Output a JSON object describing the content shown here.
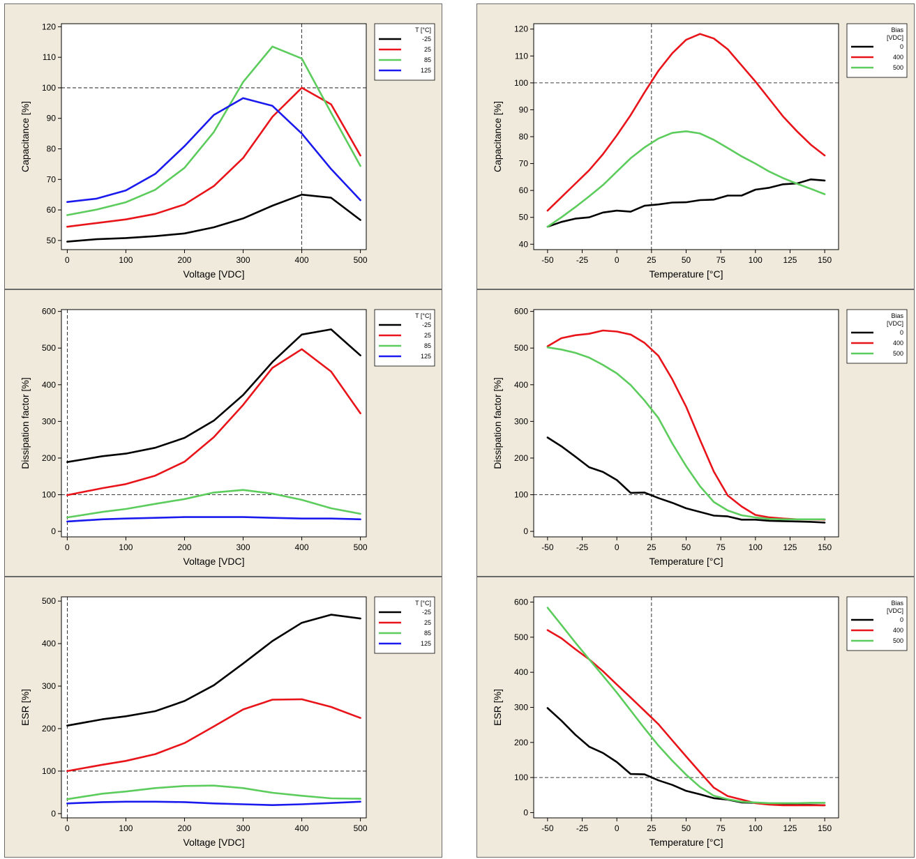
{
  "chart_data": [
    {
      "type": "line",
      "xlabel": "Voltage [VDC]",
      "ylabel": "Capacitance [%]",
      "xlim": [
        -10,
        510
      ],
      "ylim": [
        47,
        121
      ],
      "xticks": [
        0,
        100,
        200,
        300,
        400,
        500
      ],
      "yticks": [
        50,
        60,
        70,
        80,
        90,
        100,
        110,
        120
      ],
      "refx": 400,
      "refy": 100,
      "legend": {
        "title": [
          "T [°C]"
        ]
      },
      "series": [
        {
          "name": "-25",
          "color": "#000000",
          "x": [
            0,
            50,
            100,
            150,
            200,
            250,
            300,
            350,
            400,
            450,
            500
          ],
          "y": [
            49.6,
            50.4,
            50.8,
            51.4,
            52.3,
            54.3,
            57.2,
            61.4,
            65.0,
            64.0,
            56.7
          ]
        },
        {
          "name": "25",
          "color": "#e8141a",
          "x": [
            0,
            50,
            100,
            150,
            200,
            250,
            300,
            350,
            400,
            450,
            500
          ],
          "y": [
            54.5,
            55.7,
            56.9,
            58.7,
            61.8,
            67.8,
            77.0,
            90.5,
            100.0,
            94.6,
            77.8
          ]
        },
        {
          "name": "85",
          "color": "#5ccc5c",
          "x": [
            0,
            50,
            100,
            150,
            200,
            250,
            300,
            350,
            400,
            450,
            500
          ],
          "y": [
            58.3,
            60.1,
            62.5,
            66.6,
            73.8,
            85.5,
            101.9,
            113.5,
            109.6,
            91.8,
            74.4
          ]
        },
        {
          "name": "125",
          "color": "#1a1aee",
          "x": [
            0,
            50,
            100,
            150,
            200,
            250,
            300,
            350,
            400,
            450,
            500
          ],
          "y": [
            62.6,
            63.7,
            66.4,
            71.8,
            80.9,
            91.1,
            96.6,
            94.1,
            85.0,
            73.4,
            63.2
          ]
        }
      ]
    },
    {
      "type": "line",
      "xlabel": "Temperature [°C]",
      "ylabel": "Capacitance [%]",
      "xlim": [
        -60,
        160
      ],
      "ylim": [
        38,
        122
      ],
      "xticks": [
        -50,
        -25,
        0,
        25,
        50,
        75,
        100,
        125,
        150
      ],
      "yticks": [
        40,
        50,
        60,
        70,
        80,
        90,
        100,
        110,
        120
      ],
      "refx": 25,
      "refy": 100,
      "legend": {
        "title": [
          "Bias",
          "[VDC]"
        ]
      },
      "series": [
        {
          "name": "0",
          "color": "#000000",
          "x": [
            -50,
            -40,
            -30,
            -20,
            -10,
            0,
            10,
            20,
            30,
            40,
            50,
            60,
            70,
            80,
            90,
            100,
            110,
            120,
            130,
            140,
            150
          ],
          "y": [
            46.5,
            48.3,
            49.5,
            50.0,
            51.8,
            52.5,
            52.1,
            54.3,
            54.8,
            55.5,
            55.6,
            56.4,
            56.6,
            58.1,
            58.1,
            60.3,
            61.0,
            62.3,
            62.6,
            64.1,
            63.7
          ]
        },
        {
          "name": "400",
          "color": "#e8141a",
          "x": [
            -50,
            -40,
            -30,
            -20,
            -10,
            0,
            10,
            20,
            30,
            40,
            50,
            60,
            70,
            80,
            90,
            100,
            110,
            120,
            130,
            140,
            150
          ],
          "y": [
            52.5,
            57.5,
            62.5,
            67.5,
            73.5,
            80.5,
            88.0,
            96.5,
            104.5,
            111.0,
            116.0,
            118.2,
            116.5,
            112.5,
            106.5,
            100.5,
            94.0,
            87.5,
            82.0,
            77.0,
            73.0
          ]
        },
        {
          "name": "500",
          "color": "#5ccc5c",
          "x": [
            -50,
            -40,
            -30,
            -20,
            -10,
            0,
            10,
            20,
            30,
            40,
            50,
            60,
            70,
            80,
            90,
            100,
            110,
            120,
            130,
            140,
            150
          ],
          "y": [
            46.5,
            50.0,
            53.8,
            57.8,
            62.0,
            67.0,
            72.0,
            76.0,
            79.3,
            81.4,
            82.0,
            81.2,
            78.8,
            75.8,
            72.7,
            70.0,
            67.0,
            64.6,
            62.5,
            60.6,
            58.6
          ]
        }
      ]
    },
    {
      "type": "line",
      "xlabel": "Voltage [VDC]",
      "ylabel": "Dissipation factor [%]",
      "xlim": [
        -10,
        510
      ],
      "ylim": [
        -15,
        605
      ],
      "xticks": [
        0,
        100,
        200,
        300,
        400,
        500
      ],
      "yticks": [
        0,
        100,
        200,
        300,
        400,
        500,
        600
      ],
      "refx": 0,
      "refy": 100,
      "legend": {
        "title": [
          "T [°C]"
        ]
      },
      "series": [
        {
          "name": "-25",
          "color": "#000000",
          "x": [
            0,
            60,
            100,
            150,
            200,
            250,
            300,
            350,
            400,
            450,
            500
          ],
          "y": [
            189,
            205,
            212,
            228,
            255,
            302,
            372,
            462,
            537,
            551,
            480
          ]
        },
        {
          "name": "25",
          "color": "#e8141a",
          "x": [
            0,
            60,
            100,
            150,
            200,
            250,
            300,
            350,
            400,
            450,
            500
          ],
          "y": [
            99,
            118,
            129,
            152,
            190,
            257,
            345,
            446,
            497,
            436,
            322
          ]
        },
        {
          "name": "85",
          "color": "#5ccc5c",
          "x": [
            0,
            60,
            100,
            150,
            200,
            250,
            300,
            350,
            400,
            450,
            500
          ],
          "y": [
            38,
            53,
            61,
            75,
            88,
            106,
            113,
            103,
            86,
            63,
            48
          ]
        },
        {
          "name": "125",
          "color": "#1a1aee",
          "x": [
            0,
            60,
            100,
            150,
            200,
            250,
            300,
            350,
            400,
            450,
            500
          ],
          "y": [
            27,
            33,
            35,
            37,
            39,
            39,
            39,
            37,
            35,
            35,
            33
          ]
        }
      ]
    },
    {
      "type": "line",
      "xlabel": "Temperature [°C]",
      "ylabel": "Dissipation factor [%]",
      "xlim": [
        -60,
        160
      ],
      "ylim": [
        -15,
        605
      ],
      "xticks": [
        -50,
        -25,
        0,
        25,
        50,
        75,
        100,
        125,
        150
      ],
      "yticks": [
        0,
        100,
        200,
        300,
        400,
        500,
        600
      ],
      "refx": 25,
      "refy": 100,
      "legend": {
        "title": [
          "Bias",
          "[VDC]"
        ]
      },
      "series": [
        {
          "name": "0",
          "color": "#000000",
          "x": [
            -50,
            -40,
            -30,
            -20,
            -10,
            0,
            10,
            20,
            30,
            40,
            50,
            60,
            70,
            80,
            90,
            100,
            110,
            120,
            130,
            140,
            150
          ],
          "y": [
            256,
            232,
            204,
            175,
            162,
            140,
            105,
            106,
            91,
            78,
            63,
            53,
            43,
            41,
            32,
            32,
            29,
            28,
            27,
            26,
            24
          ]
        },
        {
          "name": "400",
          "color": "#e8141a",
          "x": [
            -50,
            -40,
            -30,
            -20,
            -10,
            0,
            10,
            20,
            30,
            40,
            50,
            60,
            70,
            80,
            90,
            100,
            110,
            120,
            130,
            140,
            150
          ],
          "y": [
            505,
            527,
            535,
            539,
            548,
            545,
            537,
            514,
            479,
            415,
            340,
            250,
            163,
            98,
            68,
            45,
            38,
            35,
            33,
            33,
            32
          ]
        },
        {
          "name": "500",
          "color": "#5ccc5c",
          "x": [
            -50,
            -40,
            -30,
            -20,
            -10,
            0,
            10,
            20,
            30,
            40,
            50,
            60,
            70,
            80,
            90,
            100,
            110,
            120,
            130,
            140,
            150
          ],
          "y": [
            502,
            496,
            487,
            474,
            454,
            431,
            399,
            357,
            309,
            240,
            178,
            123,
            80,
            57,
            44,
            38,
            34,
            33,
            33,
            33,
            33
          ]
        }
      ]
    },
    {
      "type": "line",
      "xlabel": "Voltage [VDC]",
      "ylabel": "ESR [%]",
      "xlim": [
        -10,
        510
      ],
      "ylim": [
        -10,
        510
      ],
      "xticks": [
        0,
        100,
        200,
        300,
        400,
        500
      ],
      "yticks": [
        0,
        100,
        200,
        300,
        400,
        500
      ],
      "refx": 0,
      "refy": 100,
      "legend": {
        "title": [
          "T [°C]"
        ]
      },
      "series": [
        {
          "name": "-25",
          "color": "#000000",
          "x": [
            0,
            60,
            100,
            150,
            200,
            250,
            300,
            350,
            400,
            450,
            500
          ],
          "y": [
            207,
            222,
            229,
            241,
            265,
            302,
            353,
            406,
            449,
            468,
            459
          ]
        },
        {
          "name": "25",
          "color": "#e8141a",
          "x": [
            0,
            60,
            100,
            150,
            200,
            250,
            300,
            350,
            400,
            450,
            500
          ],
          "y": [
            100,
            115,
            124,
            140,
            166,
            205,
            245,
            268,
            269,
            251,
            225
          ]
        },
        {
          "name": "85",
          "color": "#5ccc5c",
          "x": [
            0,
            60,
            100,
            150,
            200,
            250,
            300,
            350,
            400,
            450,
            500
          ],
          "y": [
            34,
            47,
            52,
            60,
            65,
            66,
            60,
            49,
            42,
            36,
            35
          ]
        },
        {
          "name": "125",
          "color": "#1a1aee",
          "x": [
            0,
            60,
            100,
            150,
            200,
            250,
            300,
            350,
            400,
            450,
            500
          ],
          "y": [
            24,
            27,
            28,
            28,
            27,
            24,
            22,
            20,
            22,
            25,
            28
          ]
        }
      ]
    },
    {
      "type": "line",
      "xlabel": "Temperature [°C]",
      "ylabel": "ESR [%]",
      "xlim": [
        -60,
        160
      ],
      "ylim": [
        -15,
        615
      ],
      "xticks": [
        -50,
        -25,
        0,
        25,
        50,
        75,
        100,
        125,
        150
      ],
      "yticks": [
        0,
        100,
        200,
        300,
        400,
        500,
        600
      ],
      "refx": 25,
      "refy": 100,
      "legend": {
        "title": [
          "Bias",
          "[VDC]"
        ]
      },
      "series": [
        {
          "name": "0",
          "color": "#000000",
          "x": [
            -50,
            -40,
            -30,
            -20,
            -10,
            0,
            10,
            20,
            30,
            40,
            50,
            60,
            70,
            80,
            90,
            100,
            110,
            120,
            130,
            140,
            150
          ],
          "y": [
            298,
            262,
            222,
            188,
            170,
            144,
            110,
            109,
            92,
            79,
            62,
            52,
            41,
            37,
            29,
            28,
            24,
            23,
            22,
            22,
            21
          ]
        },
        {
          "name": "400",
          "color": "#e8141a",
          "x": [
            -50,
            -40,
            -30,
            -20,
            -10,
            0,
            10,
            20,
            30,
            40,
            50,
            60,
            70,
            80,
            90,
            100,
            110,
            120,
            130,
            140,
            150
          ],
          "y": [
            520,
            497,
            466,
            437,
            403,
            365,
            328,
            290,
            252,
            206,
            160,
            115,
            71,
            47,
            37,
            27,
            23,
            21,
            21,
            21,
            21
          ]
        },
        {
          "name": "500",
          "color": "#5ccc5c",
          "x": [
            -50,
            -40,
            -30,
            -20,
            -10,
            0,
            10,
            20,
            30,
            40,
            50,
            60,
            70,
            80,
            90,
            100,
            110,
            120,
            130,
            140,
            150
          ],
          "y": [
            584,
            535,
            485,
            437,
            390,
            342,
            291,
            240,
            191,
            148,
            108,
            73,
            48,
            38,
            31,
            29,
            27,
            27,
            27,
            28,
            28
          ]
        }
      ]
    }
  ]
}
